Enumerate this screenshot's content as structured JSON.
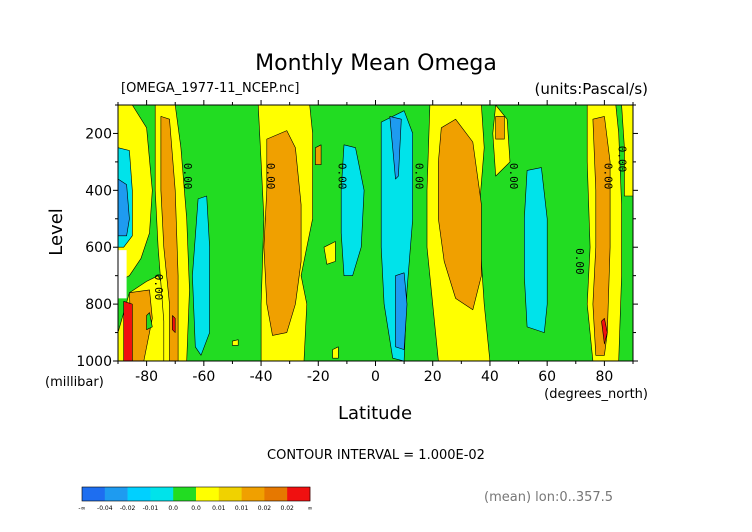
{
  "chart_data": {
    "type": "heatmap",
    "title": "Monthly Mean Omega",
    "file_label": "[OMEGA_1977-11_NCEP.nc]",
    "units_label": "(units:Pascal/s)",
    "xlabel": "Latitude",
    "xunit": "(degrees_north)",
    "ylabel": "Level",
    "yunit": "(millibar)",
    "xlim": [
      -90,
      90
    ],
    "ylim": [
      1000,
      100
    ],
    "x_ticks": [
      {
        "value": -80,
        "label": "-80"
      },
      {
        "value": -60,
        "label": "-60"
      },
      {
        "value": -40,
        "label": "-40"
      },
      {
        "value": -20,
        "label": "-20"
      },
      {
        "value": 0,
        "label": "0"
      },
      {
        "value": 20,
        "label": "20"
      },
      {
        "value": 40,
        "label": "40"
      },
      {
        "value": 60,
        "label": "60"
      },
      {
        "value": 80,
        "label": "80"
      }
    ],
    "y_ticks": [
      {
        "value": 200,
        "label": "200"
      },
      {
        "value": 400,
        "label": "400"
      },
      {
        "value": 600,
        "label": "600"
      },
      {
        "value": 800,
        "label": "800"
      },
      {
        "value": 1000,
        "label": "1000"
      }
    ],
    "contour_interval": "CONTOUR INTERVAL = 1.000E-02",
    "averaging_note": "(mean) lon:0..357.5",
    "contour_labels": [
      {
        "text": "0.00",
        "lat": -67,
        "lev": 350
      },
      {
        "text": "0.00",
        "lat": -38,
        "lev": 350
      },
      {
        "text": "0.00",
        "lat": -13,
        "lev": 350
      },
      {
        "text": "0.00",
        "lat": 14,
        "lev": 350
      },
      {
        "text": "0.00",
        "lat": 47,
        "lev": 350
      },
      {
        "text": "0.00",
        "lat": 80,
        "lev": 350
      },
      {
        "text": "0.00",
        "lat": 85,
        "lev": 290
      },
      {
        "text": "0.00",
        "lat": 70,
        "lev": 650
      },
      {
        "text": "0.00",
        "lat": -77,
        "lev": 740
      }
    ],
    "legend": {
      "bins": [
        {
          "color": "#1e6ef0",
          "range": "< -0.04"
        },
        {
          "color": "#1e9bf0",
          "range": "-0.04 to -0.02"
        },
        {
          "color": "#00d0ff",
          "range": "-0.02 to -0.01"
        },
        {
          "color": "#00e3ea",
          "range": "-0.01 to 0.0"
        },
        {
          "color": "#22dc22",
          "range": "0.0 to 0.0"
        },
        {
          "color": "#ffff00",
          "range": "0.0 to 0.01"
        },
        {
          "color": "#f0d200",
          "range": "0.01 to 0.01"
        },
        {
          "color": "#f0a000",
          "range": "0.01 to 0.02"
        },
        {
          "color": "#e67800",
          "range": "0.02 to 0.02"
        },
        {
          "color": "#f01010",
          "range": "> 0.02"
        }
      ],
      "labels": [
        {
          "text": "-∞",
          "at": 0
        },
        {
          "text": "-0.04",
          "at": 1
        },
        {
          "text": "-0.02",
          "at": 2
        },
        {
          "text": "-0.01",
          "at": 3
        },
        {
          "text": "0.0",
          "at": 4
        },
        {
          "text": "0.0",
          "at": 5
        },
        {
          "text": "0.01",
          "at": 6
        },
        {
          "text": "0.01",
          "at": 7
        },
        {
          "text": "0.02",
          "at": 8
        },
        {
          "text": "0.02",
          "at": 9
        },
        {
          "text": "∞",
          "at": 10
        }
      ]
    },
    "fill_colors": {
      "green": "#22dc22",
      "yellow": "#ffff00",
      "orange": "#f0a000",
      "cyan": "#00e3ea",
      "blue": "#1e9bf0",
      "red": "#f01010",
      "missing": "#ffffff"
    },
    "regions": [
      {
        "fill": "yellow",
        "points": [
          [
            -90,
            100
          ],
          [
            -85,
            100
          ],
          [
            -80,
            180
          ],
          [
            -78,
            400
          ],
          [
            -79,
            550
          ],
          [
            -82,
            640
          ],
          [
            -86,
            700
          ],
          [
            -90,
            720
          ]
        ]
      },
      {
        "fill": "cyan",
        "points": [
          [
            -90,
            250
          ],
          [
            -86,
            260
          ],
          [
            -85,
            400
          ],
          [
            -85,
            560
          ],
          [
            -88,
            600
          ],
          [
            -90,
            600
          ]
        ]
      },
      {
        "fill": "blue",
        "points": [
          [
            -90,
            360
          ],
          [
            -87,
            380
          ],
          [
            -86,
            500
          ],
          [
            -87,
            560
          ],
          [
            -90,
            560
          ]
        ]
      },
      {
        "fill": "yellow",
        "points": [
          [
            -80,
            720
          ],
          [
            -76,
            700
          ],
          [
            -73,
            760
          ],
          [
            -73,
            860
          ],
          [
            -74,
            1000
          ],
          [
            -90,
            1000
          ],
          [
            -90,
            900
          ],
          [
            -86,
            760
          ]
        ]
      },
      {
        "fill": "orange",
        "points": [
          [
            -86,
            760
          ],
          [
            -79,
            750
          ],
          [
            -78,
            850
          ],
          [
            -81,
            1000
          ],
          [
            -85,
            1000
          ]
        ]
      },
      {
        "fill": "red",
        "points": [
          [
            -88,
            790
          ],
          [
            -85,
            800
          ],
          [
            -85,
            1000
          ],
          [
            -88,
            1000
          ]
        ]
      },
      {
        "fill": "green",
        "points": [
          [
            -80,
            840
          ],
          [
            -79,
            830
          ],
          [
            -78,
            880
          ],
          [
            -80,
            890
          ]
        ]
      },
      {
        "fill": "yellow",
        "points": [
          [
            -77,
            100
          ],
          [
            -70,
            100
          ],
          [
            -68,
            250
          ],
          [
            -66,
            500
          ],
          [
            -65,
            750
          ],
          [
            -66,
            1000
          ],
          [
            -74,
            1000
          ],
          [
            -74,
            860
          ],
          [
            -76,
            600
          ],
          [
            -77,
            400
          ]
        ]
      },
      {
        "fill": "orange",
        "points": [
          [
            -75,
            140
          ],
          [
            -72,
            150
          ],
          [
            -70,
            400
          ],
          [
            -69,
            700
          ],
          [
            -69,
            1000
          ],
          [
            -72,
            1000
          ],
          [
            -72,
            800
          ],
          [
            -74,
            600
          ],
          [
            -75,
            400
          ]
        ]
      },
      {
        "fill": "red",
        "points": [
          [
            -71,
            840
          ],
          [
            -70,
            850
          ],
          [
            -70,
            900
          ],
          [
            -71,
            890
          ]
        ]
      },
      {
        "fill": "cyan",
        "points": [
          [
            -62,
            430
          ],
          [
            -59,
            420
          ],
          [
            -58,
            600
          ],
          [
            -58,
            900
          ],
          [
            -61,
            980
          ],
          [
            -63,
            950
          ],
          [
            -64,
            700
          ]
        ]
      },
      {
        "fill": "yellow",
        "points": [
          [
            -50,
            930
          ],
          [
            -48,
            925
          ],
          [
            -48,
            945
          ],
          [
            -50,
            945
          ]
        ]
      },
      {
        "fill": "yellow",
        "points": [
          [
            -41,
            100
          ],
          [
            -23,
            100
          ],
          [
            -22,
            200
          ],
          [
            -22,
            500
          ],
          [
            -24,
            600
          ],
          [
            -26,
            700
          ],
          [
            -24,
            800
          ],
          [
            -25,
            1000
          ],
          [
            -40,
            1000
          ],
          [
            -40,
            800
          ],
          [
            -39,
            500
          ],
          [
            -40,
            300
          ]
        ]
      },
      {
        "fill": "orange",
        "points": [
          [
            -38,
            220
          ],
          [
            -31,
            190
          ],
          [
            -28,
            250
          ],
          [
            -26,
            450
          ],
          [
            -26,
            650
          ],
          [
            -28,
            800
          ],
          [
            -31,
            900
          ],
          [
            -36,
            910
          ],
          [
            -38,
            800
          ],
          [
            -39,
            600
          ],
          [
            -38,
            400
          ]
        ]
      },
      {
        "fill": "orange",
        "points": [
          [
            -21,
            250
          ],
          [
            -19,
            240
          ],
          [
            -19,
            310
          ],
          [
            -21,
            310
          ]
        ]
      },
      {
        "fill": "yellow",
        "points": [
          [
            -18,
            600
          ],
          [
            -14,
            580
          ],
          [
            -14,
            650
          ],
          [
            -17,
            660
          ]
        ]
      },
      {
        "fill": "yellow",
        "points": [
          [
            -15,
            960
          ],
          [
            -13,
            950
          ],
          [
            -13,
            990
          ],
          [
            -15,
            990
          ]
        ]
      },
      {
        "fill": "cyan",
        "points": [
          [
            -11,
            240
          ],
          [
            -7,
            250
          ],
          [
            -4,
            400
          ],
          [
            -5,
            600
          ],
          [
            -8,
            700
          ],
          [
            -11,
            700
          ],
          [
            -12,
            550
          ],
          [
            -12,
            400
          ]
        ]
      },
      {
        "fill": "cyan",
        "points": [
          [
            2,
            160
          ],
          [
            10,
            120
          ],
          [
            13,
            200
          ],
          [
            13,
            500
          ],
          [
            11,
            750
          ],
          [
            10,
            1000
          ],
          [
            6,
            990
          ],
          [
            3,
            800
          ],
          [
            2,
            600
          ],
          [
            2,
            400
          ]
        ]
      },
      {
        "fill": "blue",
        "points": [
          [
            5,
            140
          ],
          [
            9,
            150
          ],
          [
            8,
            350
          ],
          [
            7,
            360
          ],
          [
            6,
            250
          ]
        ]
      },
      {
        "fill": "blue",
        "points": [
          [
            7,
            700
          ],
          [
            10,
            690
          ],
          [
            11,
            800
          ],
          [
            10,
            960
          ],
          [
            7,
            950
          ]
        ]
      },
      {
        "fill": "yellow",
        "points": [
          [
            19,
            100
          ],
          [
            37,
            100
          ],
          [
            38,
            250
          ],
          [
            36,
            500
          ],
          [
            38,
            800
          ],
          [
            40,
            1000
          ],
          [
            22,
            1000
          ],
          [
            20,
            800
          ],
          [
            18,
            600
          ],
          [
            18,
            400
          ]
        ]
      },
      {
        "fill": "orange",
        "points": [
          [
            23,
            180
          ],
          [
            28,
            150
          ],
          [
            34,
            230
          ],
          [
            37,
            450
          ],
          [
            37,
            700
          ],
          [
            34,
            820
          ],
          [
            28,
            780
          ],
          [
            24,
            650
          ],
          [
            22,
            500
          ],
          [
            22,
            300
          ]
        ]
      },
      {
        "fill": "yellow",
        "points": [
          [
            42,
            100
          ],
          [
            46,
            150
          ],
          [
            47,
            300
          ],
          [
            42,
            350
          ],
          [
            41,
            200
          ]
        ]
      },
      {
        "fill": "orange",
        "points": [
          [
            42,
            140
          ],
          [
            45,
            140
          ],
          [
            45,
            220
          ],
          [
            42,
            220
          ]
        ]
      },
      {
        "fill": "cyan",
        "points": [
          [
            53,
            330
          ],
          [
            58,
            320
          ],
          [
            60,
            500
          ],
          [
            60,
            800
          ],
          [
            59,
            900
          ],
          [
            53,
            880
          ],
          [
            52,
            700
          ],
          [
            52,
            500
          ]
        ]
      },
      {
        "fill": "yellow",
        "points": [
          [
            74,
            100
          ],
          [
            84,
            100
          ],
          [
            85,
            200
          ],
          [
            86,
            450
          ],
          [
            86,
            700
          ],
          [
            85,
            1000
          ],
          [
            76,
            1000
          ],
          [
            74,
            800
          ],
          [
            75,
            600
          ],
          [
            74,
            300
          ]
        ]
      },
      {
        "fill": "orange",
        "points": [
          [
            76,
            150
          ],
          [
            80,
            140
          ],
          [
            82,
            300
          ],
          [
            82,
            600
          ],
          [
            81,
            900
          ],
          [
            80,
            980
          ],
          [
            77,
            980
          ],
          [
            76,
            800
          ],
          [
            77,
            600
          ],
          [
            77,
            400
          ]
        ]
      },
      {
        "fill": "red",
        "points": [
          [
            79,
            860
          ],
          [
            80,
            850
          ],
          [
            81,
            900
          ],
          [
            80,
            940
          ]
        ]
      },
      {
        "fill": "yellow",
        "points": [
          [
            86,
            100
          ],
          [
            90,
            100
          ],
          [
            90,
            420
          ],
          [
            87,
            420
          ],
          [
            87,
            250
          ]
        ]
      },
      {
        "fill": "missing",
        "points": [
          [
            -90,
            610
          ],
          [
            -87,
            610
          ],
          [
            -87,
            780
          ],
          [
            -90,
            780
          ]
        ]
      }
    ]
  }
}
